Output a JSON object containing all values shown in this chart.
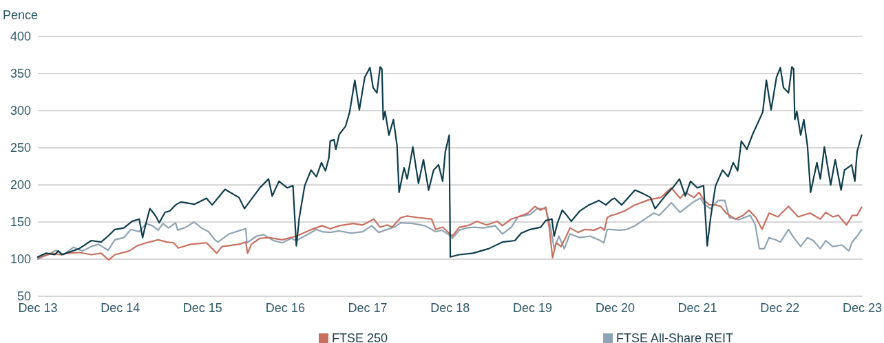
{
  "chart_data": {
    "type": "line",
    "ylabel": "Pence",
    "xlim": [
      "2013-12-31",
      "2023-12-31"
    ],
    "xticks": [
      {
        "value": "2013-12-31",
        "label": "Dec 13"
      },
      {
        "value": "2014-12-31",
        "label": "Dec 14"
      },
      {
        "value": "2015-12-31",
        "label": "Dec 15"
      },
      {
        "value": "2016-12-31",
        "label": "Dec 16"
      },
      {
        "value": "2017-12-31",
        "label": "Dec 17"
      },
      {
        "value": "2018-12-31",
        "label": "Dec 18"
      },
      {
        "value": "2019-12-31",
        "label": "Dec 19"
      },
      {
        "value": "2020-12-31",
        "label": "Dec 20"
      },
      {
        "value": "2021-12-31",
        "label": "Dec 21"
      },
      {
        "value": "2022-12-31",
        "label": "Dec 22"
      },
      {
        "value": "2023-12-31",
        "label": "Dec 23"
      }
    ],
    "ylim": [
      50,
      400
    ],
    "yticks": [
      50,
      100,
      150,
      200,
      250,
      300,
      350,
      400
    ],
    "grid": "y",
    "legend": "bottom",
    "series": [
      {
        "color": "#0e3d4b",
        "x": [
          "2013-12-31",
          "2014-02-06",
          "2014-03-16",
          "2014-04-01",
          "2014-04-16",
          "2014-07-01",
          "2014-08-25",
          "2014-10-07",
          "2014-11-07",
          "2014-12-07",
          "2015-01-16",
          "2015-02-22",
          "2015-03-25",
          "2015-04-09",
          "2015-04-22",
          "2015-05-11",
          "2015-06-02",
          "2015-06-22",
          "2015-07-17",
          "2015-08-08",
          "2015-09-02",
          "2015-09-25",
          "2015-11-26",
          "2016-01-17",
          "2016-02-11",
          "2016-04-08",
          "2016-06-09",
          "2016-07-03",
          "2016-09-09",
          "2016-10-18",
          "2016-11-03",
          "2016-12-03",
          "2017-01-09",
          "2017-02-03",
          "2017-02-18",
          "2017-03-03",
          "2017-03-27",
          "2017-04-24",
          "2017-05-18",
          "2017-06-09",
          "2017-06-27",
          "2017-07-12",
          "2017-07-18",
          "2017-08-04",
          "2017-08-12",
          "2017-08-27",
          "2017-09-24",
          "2017-10-12",
          "2017-11-04",
          "2017-11-24",
          "2017-12-18",
          "2018-01-10",
          "2018-01-24",
          "2018-02-10",
          "2018-02-24",
          "2018-03-04",
          "2018-03-10",
          "2018-03-18",
          "2018-04-04",
          "2018-04-24",
          "2018-05-10",
          "2018-05-19",
          "2018-06-10",
          "2018-06-24",
          "2018-07-19",
          "2018-08-13",
          "2018-09-04",
          "2018-09-27",
          "2018-10-19",
          "2018-11-10",
          "2018-11-28",
          "2018-12-10",
          "2018-12-27",
          "2019-01-01",
          "2019-02-10",
          "2019-04-11",
          "2019-06-19",
          "2019-08-20",
          "2019-10-14",
          "2019-11-11",
          "2019-12-20",
          "2020-02-05",
          "2020-02-28",
          "2020-03-26",
          "2020-04-05",
          "2020-04-20",
          "2020-05-11",
          "2020-05-28",
          "2020-06-20",
          "2020-07-28",
          "2020-09-06",
          "2020-10-20",
          "2020-11-20",
          "2020-12-15",
          "2020-12-29",
          "2021-01-29",
          "2021-03-29",
          "2021-04-29",
          "2021-06-06",
          "2021-06-26",
          "2021-08-12",
          "2021-09-12",
          "2021-10-12",
          "2021-11-07",
          "2021-11-30",
          "2021-12-30",
          "2022-01-27",
          "2022-02-12",
          "2022-02-27",
          "2022-03-21",
          "2022-04-21",
          "2022-05-16",
          "2022-06-07",
          "2022-06-27",
          "2022-07-13",
          "2022-08-07",
          "2022-09-01",
          "2022-10-01",
          "2022-10-16",
          "2022-11-01",
          "2022-11-22",
          "2022-12-16",
          "2023-01-02",
          "2023-01-16",
          "2023-02-07",
          "2023-02-22",
          "2023-03-02",
          "2023-03-07",
          "2023-03-16",
          "2023-04-02",
          "2023-04-16",
          "2023-05-02",
          "2023-05-16",
          "2023-06-13",
          "2023-06-28",
          "2023-07-16",
          "2023-08-13",
          "2023-09-02",
          "2023-09-28",
          "2023-10-13",
          "2023-11-14",
          "2023-11-28",
          "2023-12-08",
          "2023-12-28"
        ],
        "values": [
          103,
          108,
          106,
          111,
          106,
          114,
          125,
          123,
          131,
          140,
          142,
          151,
          154,
          129,
          146,
          168,
          160,
          149,
          163,
          165,
          173,
          177,
          174,
          182,
          173,
          194,
          183,
          168,
          196,
          208,
          185,
          205,
          196,
          199,
          118,
          156,
          199,
          220,
          211,
          230,
          219,
          236,
          259,
          261,
          248,
          268,
          279,
          298,
          341,
          301,
          345,
          358,
          331,
          324,
          359,
          356,
          288,
          299,
          267,
          288,
          253,
          190,
          223,
          208,
          251,
          202,
          234,
          193,
          220,
          227,
          205,
          245,
          267,
          103,
          106,
          108,
          114,
          123,
          125,
          135,
          140,
          143,
          152,
          154,
          131,
          149,
          166,
          160,
          151,
          165,
          173,
          179,
          173,
          180,
          182,
          173,
          193,
          189,
          183,
          168,
          186,
          196,
          208,
          185,
          205,
          196,
          199,
          118,
          156,
          199,
          220,
          211,
          230,
          219,
          259,
          248,
          268,
          288,
          298,
          341,
          301,
          345,
          358,
          331,
          324,
          359,
          356,
          288,
          299,
          267,
          288,
          253,
          190,
          230,
          208,
          251,
          200,
          234,
          193,
          220,
          227,
          205,
          245,
          267
        ]
      },
      {
        "name": "FTSE 250",
        "color": "#c8705e",
        "x": [
          "2013-12-31",
          "2014-03-07",
          "2014-04-07",
          "2014-05-16",
          "2014-07-01",
          "2014-08-25",
          "2014-10-07",
          "2014-11-10",
          "2014-12-07",
          "2015-02-08",
          "2015-03-16",
          "2015-04-25",
          "2015-06-17",
          "2015-07-25",
          "2015-08-25",
          "2015-09-14",
          "2015-11-08",
          "2016-01-17",
          "2016-03-02",
          "2016-03-26",
          "2016-06-09",
          "2016-07-09",
          "2016-07-17",
          "2016-08-03",
          "2016-09-09",
          "2016-10-18",
          "2016-12-18",
          "2017-02-18",
          "2017-04-18",
          "2017-06-12",
          "2017-07-18",
          "2017-08-27",
          "2017-10-27",
          "2017-12-09",
          "2018-01-27",
          "2018-02-24",
          "2018-03-27",
          "2018-04-18",
          "2018-05-27",
          "2018-06-24",
          "2018-08-10",
          "2018-10-10",
          "2018-10-28",
          "2018-11-28",
          "2019-01-10",
          "2019-02-10",
          "2019-03-28",
          "2019-04-28",
          "2019-06-11",
          "2019-07-28",
          "2019-08-20",
          "2019-09-28",
          "2019-10-28",
          "2019-12-11",
          "2020-01-11",
          "2020-02-05",
          "2020-02-28",
          "2020-03-14",
          "2020-03-29",
          "2020-04-14",
          "2020-05-05",
          "2020-05-26",
          "2020-06-14",
          "2020-07-20",
          "2020-08-20",
          "2020-09-29",
          "2020-10-29",
          "2020-11-14",
          "2020-11-26",
          "2020-12-15",
          "2020-12-29",
          "2021-02-12",
          "2021-03-29",
          "2021-05-29",
          "2021-07-21",
          "2021-09-06",
          "2021-10-15",
          "2021-11-07",
          "2021-12-15",
          "2022-01-07",
          "2022-01-27",
          "2022-02-21",
          "2022-03-21",
          "2022-04-13",
          "2022-05-07",
          "2022-06-16",
          "2022-07-22",
          "2022-08-16",
          "2022-09-16",
          "2022-10-13",
          "2022-11-13",
          "2022-12-22",
          "2023-02-07",
          "2023-03-22",
          "2023-05-13",
          "2023-06-28",
          "2023-07-22",
          "2023-08-22",
          "2023-09-16",
          "2023-10-22",
          "2023-11-17",
          "2023-12-08",
          "2023-12-28"
        ],
        "values": [
          102,
          108,
          106,
          108,
          109,
          106,
          108,
          99,
          106,
          111,
          118,
          122,
          126,
          123,
          122,
          115,
          120,
          122,
          108,
          117,
          120,
          123,
          108,
          120,
          128,
          129,
          126,
          131,
          139,
          145,
          141,
          145,
          148,
          146,
          154,
          143,
          146,
          143,
          156,
          158,
          156,
          154,
          140,
          143,
          131,
          143,
          146,
          151,
          146,
          151,
          145,
          154,
          157,
          162,
          171,
          166,
          170,
          143,
          102,
          122,
          117,
          129,
          142,
          136,
          140,
          139,
          143,
          139,
          156,
          159,
          160,
          165,
          173,
          180,
          183,
          196,
          182,
          190,
          183,
          190,
          180,
          173,
          173,
          171,
          162,
          154,
          159,
          166,
          156,
          140,
          162,
          157,
          171,
          157,
          162,
          154,
          163,
          157,
          159,
          146,
          159,
          159,
          170
        ]
      },
      {
        "name": "FTSE All-Share REIT",
        "color": "#8ea3b4",
        "x": [
          "2013-12-31",
          "2014-02-24",
          "2014-03-22",
          "2014-04-24",
          "2014-06-07",
          "2014-07-16",
          "2014-08-25",
          "2014-09-25",
          "2014-11-07",
          "2014-12-07",
          "2015-01-16",
          "2015-02-16",
          "2015-03-25",
          "2015-04-25",
          "2015-05-22",
          "2015-06-17",
          "2015-07-08",
          "2015-08-02",
          "2015-09-02",
          "2015-09-11",
          "2015-10-17",
          "2015-11-23",
          "2015-12-26",
          "2016-01-26",
          "2016-02-23",
          "2016-03-08",
          "2016-04-26",
          "2016-06-17",
          "2016-07-09",
          "2016-07-14",
          "2016-08-26",
          "2016-09-26",
          "2016-11-09",
          "2016-12-18",
          "2017-01-26",
          "2017-02-18",
          "2017-03-27",
          "2017-05-18",
          "2017-06-12",
          "2017-07-18",
          "2017-08-27",
          "2017-10-18",
          "2017-12-09",
          "2018-01-18",
          "2018-02-18",
          "2018-03-18",
          "2018-04-27",
          "2018-05-27",
          "2018-07-19",
          "2018-09-10",
          "2018-10-28",
          "2018-11-25",
          "2018-12-25",
          "2019-01-10",
          "2019-02-10",
          "2019-03-13",
          "2019-04-19",
          "2019-05-28",
          "2019-07-19",
          "2019-08-20",
          "2019-09-28",
          "2019-10-28",
          "2019-12-20",
          "2020-01-20",
          "2020-02-28",
          "2020-03-20",
          "2020-04-05",
          "2020-04-26",
          "2020-05-20",
          "2020-06-14",
          "2020-07-28",
          "2020-09-11",
          "2020-10-20",
          "2020-11-11",
          "2020-11-26",
          "2020-12-12",
          "2021-01-20",
          "2021-02-20",
          "2021-03-29",
          "2021-05-12",
          "2021-06-21",
          "2021-07-15",
          "2021-09-06",
          "2021-10-15",
          "2021-12-12",
          "2022-01-12",
          "2022-01-30",
          "2022-02-27",
          "2022-04-01",
          "2022-05-01",
          "2022-05-21",
          "2022-07-01",
          "2022-08-22",
          "2022-09-13",
          "2022-10-01",
          "2022-10-22",
          "2022-11-13",
          "2022-12-13",
          "2023-01-02",
          "2023-02-07",
          "2023-03-02",
          "2023-04-02",
          "2023-05-02",
          "2023-05-28",
          "2023-06-28",
          "2023-07-22",
          "2023-08-22",
          "2023-10-02",
          "2023-11-02",
          "2023-11-14",
          "2023-12-08",
          "2023-12-28"
        ],
        "values": [
          100,
          108,
          112,
          106,
          116,
          111,
          117,
          120,
          112,
          126,
          129,
          140,
          137,
          148,
          145,
          139,
          148,
          142,
          149,
          139,
          143,
          150,
          142,
          137,
          126,
          123,
          134,
          139,
          141,
          122,
          131,
          133,
          125,
          122,
          128,
          125,
          131,
          140,
          137,
          136,
          138,
          135,
          137,
          145,
          136,
          139,
          143,
          149,
          148,
          145,
          137,
          139,
          133,
          128,
          139,
          142,
          143,
          142,
          145,
          134,
          143,
          157,
          160,
          168,
          168,
          143,
          114,
          131,
          114,
          134,
          129,
          131,
          126,
          122,
          140,
          140,
          139,
          140,
          145,
          154,
          162,
          159,
          176,
          163,
          177,
          182,
          174,
          168,
          179,
          179,
          156,
          153,
          159,
          146,
          114,
          114,
          129,
          126,
          123,
          140,
          129,
          117,
          129,
          125,
          114,
          125,
          117,
          119,
          111,
          122,
          131,
          140
        ]
      }
    ]
  }
}
